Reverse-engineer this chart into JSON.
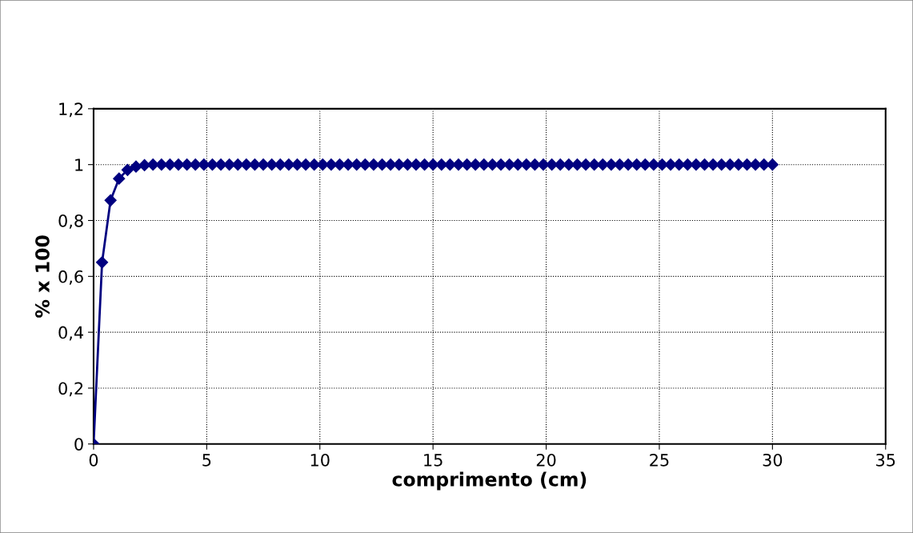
{
  "chart_data": {
    "type": "line",
    "xlabel": "comprimento (cm)",
    "ylabel": "% x 100",
    "x": [
      0,
      0.375,
      0.75,
      1.125,
      1.5,
      1.875,
      2.25,
      2.625,
      3,
      3.375,
      3.75,
      4.125,
      4.5,
      4.875,
      5.25,
      5.625,
      6,
      6.375,
      6.75,
      7.125,
      7.5,
      7.875,
      8.25,
      8.625,
      9,
      9.375,
      9.75,
      10.125,
      10.5,
      10.875,
      11.25,
      11.625,
      12,
      12.375,
      12.75,
      13.125,
      13.5,
      13.875,
      14.25,
      14.625,
      15,
      15.375,
      15.75,
      16.125,
      16.5,
      16.875,
      17.25,
      17.625,
      18,
      18.375,
      18.75,
      19.125,
      19.5,
      19.875,
      20.25,
      20.625,
      21,
      21.375,
      21.75,
      22.125,
      22.5,
      22.875,
      23.25,
      23.625,
      24,
      24.375,
      24.75,
      25.125,
      25.5,
      25.875,
      26.25,
      26.625,
      27,
      27.375,
      27.75,
      28.125,
      28.5,
      28.875,
      29.25,
      29.625,
      30
    ],
    "series": [
      {
        "color": "#000080",
        "values": [
          0,
          0.65,
          0.872,
          0.95,
          0.981,
          0.993,
          0.998,
          1,
          1,
          1,
          1,
          1,
          1,
          1,
          1,
          1,
          1,
          1,
          1,
          1,
          1,
          1,
          1,
          1,
          1,
          1,
          1,
          1,
          1,
          1,
          1,
          1,
          1,
          1,
          1,
          1,
          1,
          1,
          1,
          1,
          1,
          1,
          1,
          1,
          1,
          1,
          1,
          1,
          1,
          1,
          1,
          1,
          1,
          1,
          1,
          1,
          1,
          1,
          1,
          1,
          1,
          1,
          1,
          1,
          1,
          1,
          1,
          1,
          1,
          1,
          1,
          1,
          1,
          1,
          1,
          1,
          1,
          1,
          1,
          1,
          1
        ]
      }
    ],
    "xlim": [
      0,
      35
    ],
    "xticks": [
      0,
      5,
      10,
      15,
      20,
      25,
      30,
      35
    ],
    "ylim": [
      0,
      1.2
    ],
    "yticks": [
      0,
      {
        "value": 0.2,
        "label": "0,2"
      },
      {
        "value": 0.4,
        "label": "0,4"
      },
      {
        "value": 0.6,
        "label": "0,6"
      },
      {
        "value": 0.8,
        "label": "0,8"
      },
      1,
      {
        "value": 1.2,
        "label": "1,2"
      }
    ],
    "grid": true,
    "marker": "diamond",
    "line_style": "solid",
    "legend": false
  }
}
